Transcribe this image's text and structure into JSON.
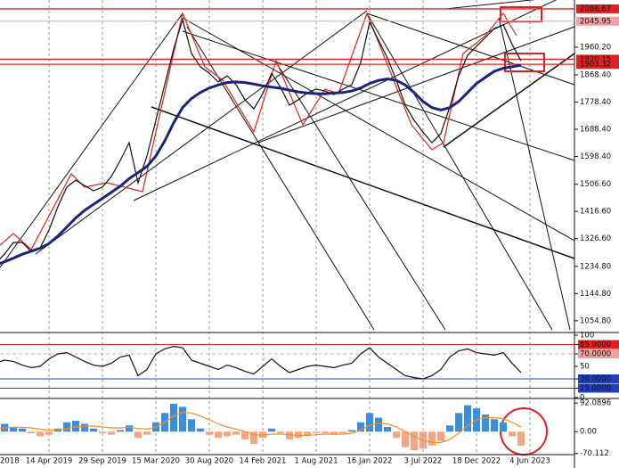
{
  "chart_data": [
    {
      "type": "line",
      "categories": [
        "2018",
        null,
        null,
        null,
        null,
        null,
        "14 Apr 2019",
        null,
        null,
        null,
        null,
        null,
        "29 Sep 2019",
        null,
        null,
        null,
        null,
        null,
        "15 Mar 2020",
        null,
        null,
        null,
        null,
        null,
        "30 Aug 2020",
        null,
        null,
        null,
        null,
        null,
        "14 Feb 2021",
        null,
        null,
        null,
        null,
        null,
        "1 Aug 2021",
        null,
        null,
        null,
        null,
        null,
        "16 Jan 2022",
        null,
        null,
        null,
        null,
        null,
        "3 Jul 2022",
        null,
        null,
        null,
        null,
        null,
        "18 Dec 2022",
        null,
        null,
        null,
        null,
        null,
        "4 Jun 2023"
      ],
      "series": [
        {
          "color": "#111111",
          "values": [
            1246,
            1275,
            1314,
            1314,
            1284,
            1296,
            1355,
            1432,
            1497,
            1520,
            1502,
            1485,
            1497,
            1532,
            1585,
            1644,
            1511,
            1600,
            1718,
            1836,
            1954,
            2051,
            1939,
            1895,
            1874,
            1845,
            1865,
            1836,
            1786,
            1756,
            1806,
            1874,
            1827,
            1768,
            1786,
            1809,
            1821,
            1815,
            1803,
            1821,
            1836,
            1909,
            2042,
            1983,
            1924,
            1850,
            1768,
            1718,
            1679,
            1644,
            1674,
            1762,
            1865,
            1933,
            1963,
            1992,
            2022,
            2034,
            1969,
            1915,
            null
          ]
        },
        {
          "color": "#1a237e",
          "values": [
            1240,
            1250,
            1262,
            1275,
            1285,
            1295,
            1310,
            1335,
            1365,
            1395,
            1420,
            1440,
            1460,
            1480,
            1500,
            1525,
            1545,
            1565,
            1600,
            1650,
            1710,
            1760,
            1790,
            1810,
            1825,
            1835,
            1843,
            1845,
            1843,
            1838,
            1832,
            1828,
            1824,
            1818,
            1812,
            1808,
            1806,
            1806,
            1808,
            1810,
            1815,
            1825,
            1840,
            1850,
            1855,
            1850,
            1835,
            1810,
            1780,
            1760,
            1752,
            1760,
            1780,
            1810,
            1840,
            1860,
            1880,
            1890,
            1895,
            1900,
            null
          ]
        }
      ],
      "ylim": [
        1019,
        2116
      ],
      "yticks": [
        {
          "value": 1960.2,
          "label": "1960.20"
        },
        {
          "value": 1868.4,
          "label": "1868.40"
        },
        {
          "value": 1778.4,
          "label": "1778.40"
        },
        {
          "value": 1688.4,
          "label": "1688.40"
        },
        {
          "value": 1598.4,
          "label": "1598.40"
        },
        {
          "value": 1506.6,
          "label": "1506.60"
        },
        {
          "value": 1416.6,
          "label": "1416.60"
        },
        {
          "value": 1326.6,
          "label": "1326.60"
        },
        {
          "value": 1234.8,
          "label": "1234.80"
        },
        {
          "value": 1144.8,
          "label": "1144.80"
        },
        {
          "value": 1054.8,
          "label": "1054.80"
        }
      ],
      "levels": [
        2086.67,
        2045.95,
        1920.15,
        1903.32
      ],
      "level_colors": [
        "#e02020",
        "#f4a0a0",
        "#e02020",
        "#e02020"
      ],
      "grid": true
    },
    {
      "type": "line",
      "series": [
        {
          "color": "#111111",
          "values": [
            55,
            60,
            58,
            52,
            48,
            50,
            62,
            70,
            72,
            65,
            58,
            52,
            50,
            55,
            65,
            68,
            35,
            45,
            70,
            78,
            82,
            80,
            60,
            55,
            50,
            45,
            52,
            48,
            42,
            38,
            50,
            62,
            50,
            40,
            45,
            50,
            52,
            50,
            48,
            52,
            55,
            70,
            80,
            65,
            55,
            45,
            35,
            32,
            30,
            35,
            45,
            65,
            75,
            78,
            72,
            70,
            68,
            72,
            55,
            40,
            null
          ]
        }
      ],
      "ylim": [
        0,
        100
      ],
      "yticks": [
        100,
        {
          "value": 85,
          "label": "85.0000"
        },
        {
          "value": 70,
          "label": "70.0000"
        },
        50,
        {
          "value": 30,
          "label": "30.0000"
        },
        {
          "value": 15,
          "label": "15.0000"
        },
        0
      ],
      "tick_colors": [
        null,
        "#e02020",
        "#f4a0a0",
        null,
        "#2040c0",
        "#2040c0",
        null
      ]
    },
    {
      "type": "bar",
      "pos_color": "#3a8fe0",
      "neg_color": "#f4a582",
      "values": [
        20,
        25,
        15,
        10,
        -5,
        -15,
        -10,
        10,
        30,
        35,
        25,
        10,
        -5,
        -10,
        5,
        20,
        -20,
        -10,
        30,
        60,
        90,
        80,
        40,
        10,
        -10,
        -20,
        -15,
        -10,
        -25,
        -40,
        -20,
        10,
        -5,
        -25,
        -20,
        -10,
        -5,
        -5,
        -10,
        -5,
        5,
        30,
        60,
        45,
        15,
        -20,
        -50,
        -60,
        -55,
        -45,
        -30,
        20,
        60,
        85,
        75,
        55,
        40,
        30,
        -15,
        -45,
        null
      ],
      "series": [
        {
          "color": "#ff8c1a",
          "values": [
            10,
            12,
            14,
            14,
            12,
            8,
            5,
            6,
            10,
            15,
            18,
            18,
            15,
            12,
            12,
            14,
            10,
            8,
            15,
            30,
            50,
            62,
            60,
            50,
            38,
            25,
            15,
            8,
            0,
            -10,
            -12,
            -8,
            -8,
            -10,
            -12,
            -12,
            -10,
            -8,
            -8,
            -8,
            -5,
            5,
            20,
            28,
            25,
            15,
            0,
            -15,
            -28,
            -35,
            -35,
            -25,
            -5,
            20,
            38,
            45,
            45,
            42,
            30,
            15,
            null
          ]
        }
      ],
      "ylim": [
        -74,
        104
      ],
      "yticks": [
        92.0896,
        {
          "value": 0,
          "label": "0.00"
        },
        -70.112
      ]
    }
  ]
}
